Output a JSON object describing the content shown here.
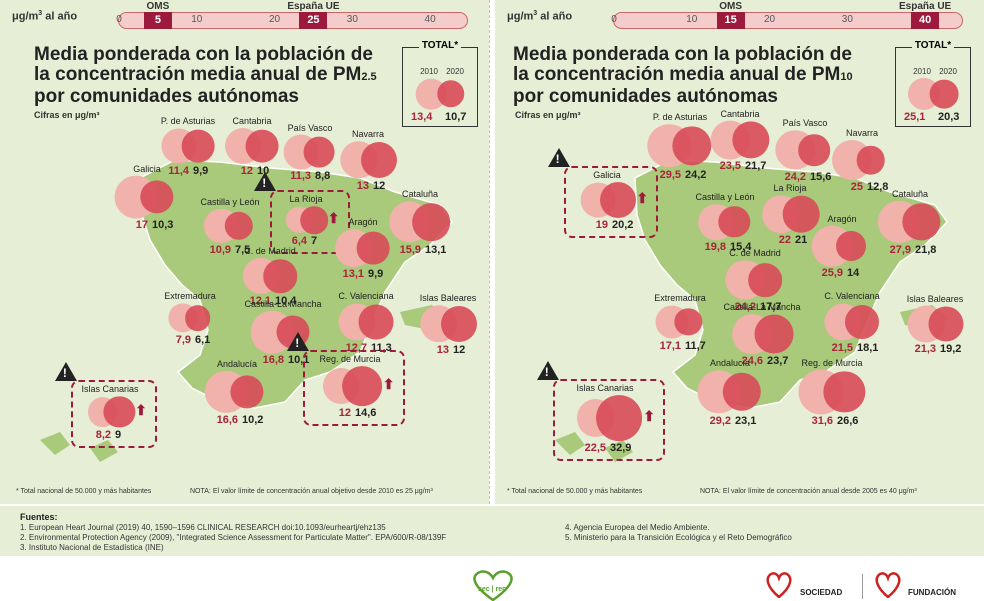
{
  "scale": {
    "unit_label": "μg/m",
    "unit_sup": "3",
    "unit_suffix": " al año",
    "left": {
      "ticks": [
        "0",
        "10",
        "20",
        "30",
        "40"
      ],
      "tick_values": [
        0,
        10,
        20,
        30,
        40
      ],
      "markers": [
        {
          "value": 5,
          "label": "5",
          "name": "OMS"
        },
        {
          "value": 25,
          "label": "25",
          "name": "España UE"
        }
      ]
    },
    "right": {
      "ticks": [
        "0",
        "10",
        "20",
        "30"
      ],
      "tick_values": [
        0,
        10,
        20,
        30
      ],
      "markers": [
        {
          "value": 15,
          "label": "15",
          "name": "OMS"
        },
        {
          "value": 40,
          "label": "40",
          "name": "España UE"
        }
      ]
    }
  },
  "left": {
    "title_line1": "Media ponderada con la población de",
    "title_line2": "la concentración media anual de PM",
    "title_sub": "2.5",
    "title_line3": "por comunidades autónomas",
    "unit": "Cifras en μg/m³",
    "total_title": "TOTAL*",
    "year_old": "2010",
    "year_new": "2020",
    "footnote1": "* Total nacional de 50.000 y más habitantes",
    "footnote2": "NOTA: El valor límite de concentración anual objetivo desde 2010 es 25 μg/m³"
  },
  "right": {
    "title_line1": "Media ponderada con la población de",
    "title_line2": "la concentración media anual de PM",
    "title_sub": "10",
    "title_line3": "por comunidades autónomas",
    "unit": "Cifras en μg/m³",
    "total_title": "TOTAL*",
    "year_old": "2010",
    "year_new": "2020",
    "footnote1": "* Total nacional de 50.000 y más habitantes",
    "footnote2": "NOTA: El valor límite de concentración anual desde 2005 es 40 μg/m³"
  },
  "chart_data": [
    {
      "type": "bubble",
      "title": "Media ponderada con la población de la concentración media anual de PM2.5 por comunidades autónomas",
      "unit": "μg/m³",
      "series": [
        {
          "name": "2010"
        },
        {
          "name": "2020"
        }
      ],
      "total": {
        "name": "TOTAL*",
        "old": "13,4",
        "new": "10,7",
        "old_value": 13.4,
        "new_value": 10.7
      },
      "regions": [
        {
          "name": "P. de Asturias",
          "old": "11,4",
          "new": "9,9",
          "old_value": 11.4,
          "new_value": 9.9
        },
        {
          "name": "Cantabria",
          "old": "12",
          "new": "10",
          "old_value": 12,
          "new_value": 10
        },
        {
          "name": "País Vasco",
          "old": "11,3",
          "new": "8,8",
          "old_value": 11.3,
          "new_value": 8.8
        },
        {
          "name": "Navarra",
          "old": "13",
          "new": "12",
          "old_value": 13,
          "new_value": 12
        },
        {
          "name": "Galicia",
          "old": "17",
          "new": "10,3",
          "old_value": 17,
          "new_value": 10.3
        },
        {
          "name": "Castilla y León",
          "old": "10,9",
          "new": "7,5",
          "old_value": 10.9,
          "new_value": 7.5
        },
        {
          "name": "La Rioja",
          "old": "6,4",
          "new": "7",
          "old_value": 6.4,
          "new_value": 7,
          "increase": true
        },
        {
          "name": "Cataluña",
          "old": "15,9",
          "new": "13,1",
          "old_value": 15.9,
          "new_value": 13.1
        },
        {
          "name": "Aragón",
          "old": "13,1",
          "new": "9,9",
          "old_value": 13.1,
          "new_value": 9.9
        },
        {
          "name": "C. de Madrid",
          "old": "12,1",
          "new": "10,4",
          "old_value": 12.1,
          "new_value": 10.4
        },
        {
          "name": "Extremadura",
          "old": "7,9",
          "new": "6,1",
          "old_value": 7.9,
          "new_value": 6.1
        },
        {
          "name": "Castilla-La Mancha",
          "old": "16,8",
          "new": "10,1",
          "old_value": 16.8,
          "new_value": 10.1
        },
        {
          "name": "C. Valenciana",
          "old": "12,7",
          "new": "11,3",
          "old_value": 12.7,
          "new_value": 11.3
        },
        {
          "name": "Islas Baleares",
          "old": "13",
          "new": "12",
          "old_value": 13,
          "new_value": 12
        },
        {
          "name": "Andalucía",
          "old": "16,6",
          "new": "10,2",
          "old_value": 16.6,
          "new_value": 10.2
        },
        {
          "name": "Reg. de Murcia",
          "old": "12",
          "new": "14,6",
          "old_value": 12,
          "new_value": 14.6,
          "increase": true
        },
        {
          "name": "Islas Canarias",
          "old": "8,2",
          "new": "9",
          "old_value": 8.2,
          "new_value": 9,
          "increase": true
        }
      ]
    },
    {
      "type": "bubble",
      "title": "Media ponderada con la población de la concentración media anual de PM10 por comunidades autónomas",
      "unit": "μg/m³",
      "series": [
        {
          "name": "2010"
        },
        {
          "name": "2020"
        }
      ],
      "total": {
        "name": "TOTAL*",
        "old": "25,1",
        "new": "20,3",
        "old_value": 25.1,
        "new_value": 20.3
      },
      "regions": [
        {
          "name": "P. de Asturias",
          "old": "29,5",
          "new": "24,2",
          "old_value": 29.5,
          "new_value": 24.2
        },
        {
          "name": "Cantabria",
          "old": "23,5",
          "new": "21,7",
          "old_value": 23.5,
          "new_value": 21.7
        },
        {
          "name": "País Vasco",
          "old": "24,2",
          "new": "15,6",
          "old_value": 24.2,
          "new_value": 15.6
        },
        {
          "name": "Navarra",
          "old": "25",
          "new": "12,8",
          "old_value": 25,
          "new_value": 12.8
        },
        {
          "name": "Galicia",
          "old": "19",
          "new": "20,2",
          "old_value": 19,
          "new_value": 20.2,
          "increase": true
        },
        {
          "name": "Castilla y León",
          "old": "19,8",
          "new": "15,4",
          "old_value": 19.8,
          "new_value": 15.4
        },
        {
          "name": "La Rioja",
          "old": "22",
          "new": "21",
          "old_value": 22,
          "new_value": 21
        },
        {
          "name": "Cataluña",
          "old": "27,9",
          "new": "21,8",
          "old_value": 27.9,
          "new_value": 21.8
        },
        {
          "name": "Aragón",
          "old": "25,9",
          "new": "14",
          "old_value": 25.9,
          "new_value": 14
        },
        {
          "name": "C. de Madrid",
          "old": "24,2",
          "new": "17,7",
          "old_value": 24.2,
          "new_value": 17.7
        },
        {
          "name": "Extremadura",
          "old": "17,1",
          "new": "11,7",
          "old_value": 17.1,
          "new_value": 11.7
        },
        {
          "name": "Castilla-La Mancha",
          "old": "24,6",
          "new": "23,7",
          "old_value": 24.6,
          "new_value": 23.7
        },
        {
          "name": "C. Valenciana",
          "old": "21,5",
          "new": "18,1",
          "old_value": 21.5,
          "new_value": 18.1
        },
        {
          "name": "Islas Baleares",
          "old": "21,3",
          "new": "19,2",
          "old_value": 21.3,
          "new_value": 19.2
        },
        {
          "name": "Andalucía",
          "old": "29,2",
          "new": "23,1",
          "old_value": 29.2,
          "new_value": 23.1
        },
        {
          "name": "Reg. de Murcia",
          "old": "31,6",
          "new": "26,6",
          "old_value": 31.6,
          "new_value": 26.6
        },
        {
          "name": "Islas Canarias",
          "old": "22,5",
          "new": "32,9",
          "old_value": 22.5,
          "new_value": 32.9,
          "increase": true
        }
      ]
    }
  ],
  "sources": {
    "title": "Fuentes:",
    "items": [
      "1. European Heart Journal (2019) 40, 1590–1596 CLINICAL RESEARCH doi:10.1093/eurheartj/ehz135",
      "2. Environmental Protection Agency (2009), \"Integrated Science Assessment for Particulate Matter\". EPA/600/R-08/139F",
      "3. Instituto Nacional de Estadística (INE)",
      "4. Agencia Europea del Medio Ambiente.",
      "5. Ministerio para la Transición Ecológica y el Reto Demográfico"
    ]
  },
  "logos": {
    "sec": "sec | rec",
    "sociedad": "SOCIEDAD",
    "fundacion": "FUNDACIÓN"
  },
  "colors": {
    "old": "#f0b2aa",
    "new": "#d84a58",
    "accent": "#9c1b3c",
    "background": "#e6efd5",
    "map": "#a9c97b"
  }
}
